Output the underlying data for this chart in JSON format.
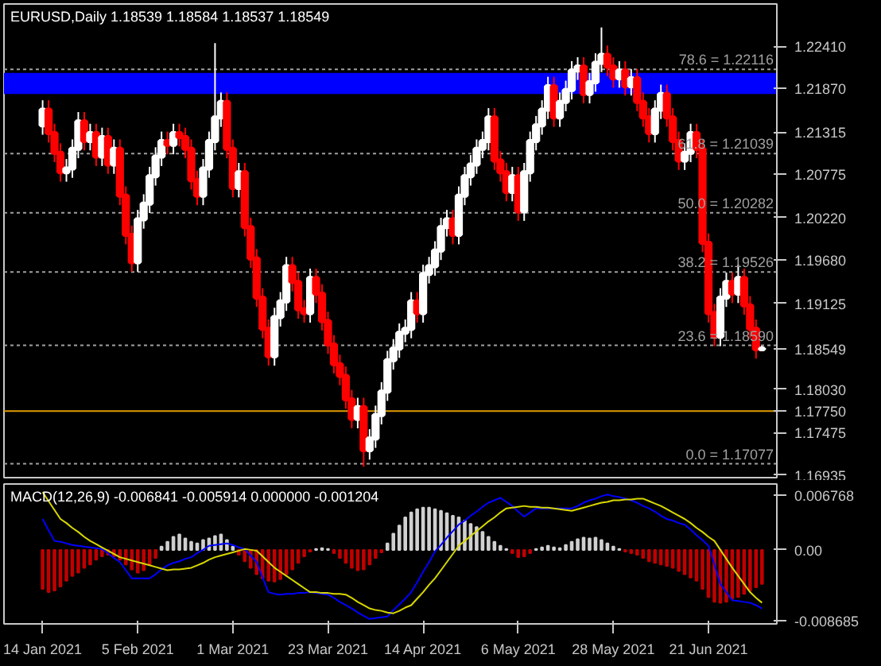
{
  "chart_data": [
    {
      "type": "candlestick",
      "title": "EURUSD,Daily  1.18539 1.18584 1.18537 1.18549",
      "tick_labels": "y",
      "categories": [
        null,
        null,
        null,
        null,
        null,
        null,
        null,
        null,
        null,
        null,
        null,
        null,
        null,
        null,
        null,
        null,
        null,
        null,
        null,
        null,
        null,
        null,
        null,
        null,
        null,
        null,
        null,
        null,
        null,
        null,
        null,
        null,
        null,
        null,
        null,
        null,
        null,
        null,
        null,
        null,
        null,
        null,
        null,
        null,
        null,
        null,
        null,
        null,
        null,
        null,
        null,
        null,
        null,
        null,
        null,
        null,
        null,
        null,
        null,
        null,
        null,
        null,
        null,
        null,
        null,
        null,
        null,
        null,
        null,
        null,
        null,
        null,
        null,
        null,
        null,
        null,
        null,
        null,
        null,
        null,
        null,
        null,
        null,
        null,
        null,
        null,
        null,
        null,
        null,
        null,
        null,
        null,
        null,
        null,
        null,
        null,
        null,
        null,
        null,
        null,
        null,
        null,
        null,
        null,
        null,
        null,
        null,
        null,
        null,
        null,
        null,
        null,
        null,
        null,
        null,
        null,
        null,
        null,
        null,
        null,
        null,
        null
      ],
      "ohlc": [
        [
          1.214,
          1.2172,
          1.2128,
          1.216
        ],
        [
          1.216,
          1.2172,
          1.2118,
          1.213
        ],
        [
          1.213,
          1.2142,
          1.2093,
          1.2105
        ],
        [
          1.2105,
          1.2117,
          1.2068,
          1.208
        ],
        [
          1.208,
          1.2097,
          1.2068,
          1.2085
        ],
        [
          1.2085,
          1.2122,
          1.2073,
          1.211
        ],
        [
          1.211,
          1.2157,
          1.2098,
          1.2145
        ],
        [
          1.2145,
          1.2157,
          1.2108,
          1.212
        ],
        [
          1.212,
          1.2142,
          1.2108,
          1.213
        ],
        [
          1.213,
          1.2142,
          1.2088,
          1.21
        ],
        [
          1.21,
          1.2137,
          1.2088,
          1.2125
        ],
        [
          1.2125,
          1.2137,
          1.2078,
          1.209
        ],
        [
          1.209,
          1.2122,
          1.2078,
          1.211
        ],
        [
          1.211,
          1.2122,
          1.2038,
          1.205
        ],
        [
          1.205,
          1.2062,
          1.1988,
          1.2
        ],
        [
          1.2,
          1.2012,
          1.1953,
          1.1965
        ],
        [
          1.1965,
          1.2032,
          1.1953,
          1.202
        ],
        [
          1.202,
          1.2052,
          1.2008,
          1.204
        ],
        [
          1.204,
          1.2087,
          1.2028,
          1.2075
        ],
        [
          1.2075,
          1.2112,
          1.2063,
          1.21
        ],
        [
          1.21,
          1.2132,
          1.2088,
          1.212
        ],
        [
          1.212,
          1.2132,
          1.2103,
          1.2115
        ],
        [
          1.2115,
          1.2142,
          1.2103,
          1.213
        ],
        [
          1.213,
          1.2142,
          1.2113,
          1.2125
        ],
        [
          1.2125,
          1.2137,
          1.2098,
          1.211
        ],
        [
          1.211,
          1.2122,
          1.2058,
          1.207
        ],
        [
          1.207,
          1.2082,
          1.2038,
          1.205
        ],
        [
          1.205,
          1.2097,
          1.2038,
          1.2085
        ],
        [
          1.2085,
          1.2132,
          1.2073,
          1.212
        ],
        [
          1.212,
          1.2245,
          1.2108,
          1.215
        ],
        [
          1.215,
          1.2182,
          1.2138,
          1.217
        ],
        [
          1.217,
          1.2182,
          1.2098,
          1.211
        ],
        [
          1.211,
          1.2122,
          1.2048,
          1.206
        ],
        [
          1.206,
          1.2092,
          1.2048,
          1.208
        ],
        [
          1.208,
          1.2092,
          1.1998,
          1.201
        ],
        [
          1.201,
          1.2022,
          1.1958,
          1.197
        ],
        [
          1.197,
          1.1982,
          1.1908,
          1.192
        ],
        [
          1.192,
          1.1932,
          1.1868,
          1.188
        ],
        [
          1.188,
          1.1892,
          1.1833,
          1.1845
        ],
        [
          1.1845,
          1.1907,
          1.1833,
          1.1895
        ],
        [
          1.1895,
          1.1927,
          1.1883,
          1.1915
        ],
        [
          1.1915,
          1.1972,
          1.1903,
          1.196
        ],
        [
          1.196,
          1.1972,
          1.1928,
          1.194
        ],
        [
          1.194,
          1.1952,
          1.1893,
          1.1905
        ],
        [
          1.1905,
          1.1917,
          1.1888,
          1.19
        ],
        [
          1.19,
          1.1957,
          1.1888,
          1.1945
        ],
        [
          1.1945,
          1.1957,
          1.1913,
          1.1925
        ],
        [
          1.1925,
          1.1937,
          1.1878,
          1.189
        ],
        [
          1.189,
          1.1902,
          1.1848,
          1.186
        ],
        [
          1.186,
          1.1872,
          1.1823,
          1.1835
        ],
        [
          1.1835,
          1.1847,
          1.1808,
          1.182
        ],
        [
          1.182,
          1.1832,
          1.1778,
          1.179
        ],
        [
          1.179,
          1.1802,
          1.1753,
          1.1765
        ],
        [
          1.1765,
          1.1792,
          1.1753,
          1.178
        ],
        [
          1.178,
          1.1792,
          1.1704,
          1.1725
        ],
        [
          1.1725,
          1.1752,
          1.1713,
          1.174
        ],
        [
          1.174,
          1.1782,
          1.1728,
          1.177
        ],
        [
          1.177,
          1.1812,
          1.1758,
          1.18
        ],
        [
          1.18,
          1.1852,
          1.1788,
          1.184
        ],
        [
          1.184,
          1.1867,
          1.1828,
          1.1855
        ],
        [
          1.1855,
          1.1887,
          1.1843,
          1.1875
        ],
        [
          1.1875,
          1.1892,
          1.1863,
          1.188
        ],
        [
          1.188,
          1.1927,
          1.1868,
          1.1915
        ],
        [
          1.1915,
          1.1927,
          1.1888,
          1.19
        ],
        [
          1.19,
          1.1962,
          1.1888,
          1.195
        ],
        [
          1.195,
          1.1972,
          1.1938,
          1.196
        ],
        [
          1.196,
          1.1992,
          1.1948,
          1.198
        ],
        [
          1.198,
          1.2022,
          1.1968,
          1.201
        ],
        [
          1.201,
          1.2032,
          1.1998,
          1.202
        ],
        [
          1.202,
          1.2032,
          1.1988,
          1.2
        ],
        [
          1.2,
          1.2062,
          1.1988,
          1.205
        ],
        [
          1.205,
          1.2087,
          1.2038,
          1.2075
        ],
        [
          1.2075,
          1.2102,
          1.2063,
          1.209
        ],
        [
          1.209,
          1.2122,
          1.2078,
          1.211
        ],
        [
          1.211,
          1.2132,
          1.2098,
          1.212
        ],
        [
          1.212,
          1.2162,
          1.2108,
          1.215
        ],
        [
          1.215,
          1.2162,
          1.2083,
          1.2095
        ],
        [
          1.2095,
          1.2107,
          1.2068,
          1.208
        ],
        [
          1.208,
          1.2092,
          1.2043,
          1.2055
        ],
        [
          1.2055,
          1.2087,
          1.2043,
          1.2075
        ],
        [
          1.2075,
          1.2087,
          1.2018,
          1.203
        ],
        [
          1.203,
          1.2092,
          1.2018,
          1.208
        ],
        [
          1.208,
          1.2132,
          1.2068,
          1.212
        ],
        [
          1.212,
          1.2152,
          1.2108,
          1.214
        ],
        [
          1.214,
          1.2172,
          1.2128,
          1.216
        ],
        [
          1.216,
          1.2202,
          1.2148,
          1.219
        ],
        [
          1.219,
          1.2202,
          1.2138,
          1.215
        ],
        [
          1.215,
          1.2182,
          1.2138,
          1.217
        ],
        [
          1.217,
          1.2197,
          1.2158,
          1.2185
        ],
        [
          1.2185,
          1.2222,
          1.2173,
          1.221
        ],
        [
          1.221,
          1.2227,
          1.2198,
          1.2215
        ],
        [
          1.2215,
          1.2227,
          1.2168,
          1.218
        ],
        [
          1.218,
          1.2207,
          1.2168,
          1.2195
        ],
        [
          1.2195,
          1.2232,
          1.2183,
          1.222
        ],
        [
          1.222,
          1.2265,
          1.2208,
          1.223
        ],
        [
          1.223,
          1.2242,
          1.2203,
          1.2215
        ],
        [
          1.2215,
          1.2227,
          1.2188,
          1.22
        ],
        [
          1.22,
          1.2222,
          1.2188,
          1.221
        ],
        [
          1.221,
          1.2222,
          1.2178,
          1.219
        ],
        [
          1.219,
          1.2212,
          1.2178,
          1.22
        ],
        [
          1.22,
          1.2212,
          1.2158,
          1.217
        ],
        [
          1.217,
          1.2182,
          1.2138,
          1.215
        ],
        [
          1.215,
          1.2162,
          1.2118,
          1.213
        ],
        [
          1.213,
          1.2172,
          1.2118,
          1.216
        ],
        [
          1.216,
          1.2192,
          1.2148,
          1.218
        ],
        [
          1.218,
          1.2192,
          1.2138,
          1.215
        ],
        [
          1.215,
          1.2162,
          1.2108,
          1.212
        ],
        [
          1.212,
          1.2132,
          1.2083,
          1.2095
        ],
        [
          1.2095,
          1.2117,
          1.2083,
          1.2105
        ],
        [
          1.2105,
          1.2142,
          1.2093,
          1.213
        ],
        [
          1.213,
          1.2142,
          1.2098,
          1.211
        ],
        [
          1.211,
          1.2122,
          1.1978,
          1.199
        ],
        [
          1.199,
          1.2002,
          1.1888,
          1.19
        ],
        [
          1.19,
          1.1912,
          1.1858,
          1.187
        ],
        [
          1.187,
          1.1932,
          1.1858,
          1.192
        ],
        [
          1.192,
          1.1952,
          1.1908,
          1.194
        ],
        [
          1.194,
          1.1952,
          1.1913,
          1.1925
        ],
        [
          1.1925,
          1.1962,
          1.1913,
          1.1945
        ],
        [
          1.1945,
          1.1957,
          1.1898,
          1.191
        ],
        [
          1.191,
          1.1922,
          1.1868,
          1.188
        ],
        [
          1.188,
          1.1892,
          1.1842,
          1.1854
        ],
        [
          1.18539,
          1.18584,
          1.18537,
          1.18549
        ]
      ],
      "ylim": [
        1.169,
        1.2295
      ],
      "yticks": [
        {
          "value": 1.2241,
          "label": "1.22410"
        },
        {
          "value": 1.2187,
          "label": "1.21870"
        },
        1.21315,
        1.20775,
        {
          "value": 1.2022,
          "label": "1.20220"
        },
        {
          "value": 1.1968,
          "label": "1.19680"
        },
        1.19125,
        {
          "value": 1.18549,
          "label": "1.18549"
        },
        {
          "value": 1.1803,
          "label": "1.18030"
        },
        1.17475,
        1.16935
      ],
      "ref_lines": [
        {
          "axis": "y",
          "value": 1.22116,
          "label": "78.6 = 1.22116",
          "color": "#a0a0a0",
          "line_style": "dotted"
        },
        {
          "axis": "y",
          "value": 1.21039,
          "label": "61.8 = 1.21039",
          "color": "#a0a0a0",
          "line_style": "dotted"
        },
        {
          "axis": "y",
          "value": 1.20282,
          "label": "50.0 = 1.20282",
          "color": "#a0a0a0",
          "line_style": "dotted"
        },
        {
          "axis": "y",
          "value": 1.19526,
          "label": "38.2 = 1.19526",
          "color": "#a0a0a0",
          "line_style": "dotted"
        },
        {
          "axis": "y",
          "value": 1.1859,
          "label": "23.6 = 1.18590",
          "color": "#a0a0a0",
          "line_style": "dotted"
        },
        {
          "axis": "y",
          "value": 1.17077,
          "label": "0.0 = 1.17077",
          "color": "#a0a0a0",
          "line_style": "dotted"
        },
        {
          "axis": "y",
          "value": 1.1775,
          "label": "1.17750",
          "color": "#e09a00",
          "line_style": "solid"
        }
      ],
      "bands": [
        {
          "axis": "y",
          "from": 1.218,
          "to": 1.2207,
          "color": "#0000ff"
        }
      ]
    },
    {
      "type": "bar",
      "title": "MACD(12,26,9) -0.006841 -0.005914 0.000000 -0.001204",
      "categories": [
        "14 Jan 2021",
        null,
        null,
        null,
        null,
        null,
        null,
        null,
        null,
        null,
        null,
        null,
        null,
        null,
        null,
        null,
        "5 Feb 2021",
        null,
        null,
        null,
        null,
        null,
        null,
        null,
        null,
        null,
        null,
        null,
        null,
        null,
        null,
        null,
        "1 Mar 2021",
        null,
        null,
        null,
        null,
        null,
        null,
        null,
        null,
        null,
        null,
        null,
        null,
        null,
        null,
        null,
        "23 Mar 2021",
        null,
        null,
        null,
        null,
        null,
        null,
        null,
        null,
        null,
        null,
        null,
        null,
        null,
        null,
        null,
        "14 Apr 2021",
        null,
        null,
        null,
        null,
        null,
        null,
        null,
        null,
        null,
        null,
        null,
        null,
        null,
        null,
        null,
        "6 May 2021",
        null,
        null,
        null,
        null,
        null,
        null,
        null,
        null,
        null,
        null,
        null,
        null,
        null,
        null,
        null,
        "28 May 2021",
        null,
        null,
        null,
        null,
        null,
        null,
        null,
        null,
        null,
        null,
        null,
        null,
        null,
        null,
        null,
        "21 Jun 2021",
        null,
        null,
        null,
        null,
        null,
        null,
        null,
        null,
        null
      ],
      "ylim": [
        -0.0091,
        0.0081
      ],
      "yticks": [
        {
          "value": 0.006768,
          "label": "0.006768"
        },
        {
          "value": 0,
          "label": "0.00"
        },
        {
          "value": -0.008685,
          "label": "-0.008685"
        }
      ],
      "series": [
        {
          "type": "bar",
          "values": [
            -0.0048,
            -0.0052,
            -0.005,
            -0.0045,
            -0.0038,
            -0.0032,
            -0.0028,
            -0.0022,
            -0.0018,
            -0.0012,
            -0.0008,
            -0.0006,
            -0.0008,
            -0.0012,
            -0.0018,
            -0.0024,
            -0.0028,
            -0.0025,
            -0.0018,
            -0.001,
            0.0004,
            0.001,
            0.0016,
            0.0019,
            0.0014,
            0.001,
            0.0008,
            0.0012,
            0.0014,
            0.0017,
            0.0019,
            0.0012,
            0.0004,
            -0.0006,
            -0.0014,
            -0.0022,
            -0.003,
            -0.0035,
            -0.0038,
            -0.0039,
            -0.0036,
            -0.003,
            -0.0024,
            -0.0016,
            -0.0008,
            -0.0002,
            0.0001,
            0.0002,
            0.0001,
            -0.0004,
            -0.001,
            -0.0016,
            -0.0022,
            -0.0025,
            -0.0024,
            -0.0018,
            -0.001,
            -0.0003,
            0.0008,
            0.002,
            0.003,
            0.004,
            0.0046,
            0.005,
            0.0052,
            0.0052,
            0.005,
            0.0048,
            0.0045,
            0.0042,
            0.004,
            0.0036,
            0.0032,
            0.0028,
            0.0022,
            0.0016,
            0.001,
            0.0005,
            0.0001,
            -0.0004,
            -0.0009,
            -0.0008,
            -0.0004,
            0.0001,
            0.0003,
            0.0005,
            0.0003,
            0.0002,
            0.0006,
            0.001,
            0.0013,
            0.0015,
            0.0014,
            0.0015,
            0.0012,
            0.0008,
            0.0004,
            0.0001,
            -0.0002,
            -0.0004,
            -0.0006,
            -0.001,
            -0.0014,
            -0.0016,
            -0.0018,
            -0.002,
            -0.0022,
            -0.0026,
            -0.003,
            -0.0034,
            -0.0038,
            -0.0048,
            -0.0058,
            -0.0064,
            -0.0065,
            -0.0064,
            -0.006,
            -0.0058,
            -0.0054,
            -0.005,
            -0.0046,
            -0.0042
          ],
          "colors": [
            "#c00000",
            "#c00000",
            "#c00000",
            "#c00000",
            "#c00000",
            "#c00000",
            "#c00000",
            "#c00000",
            "#c00000",
            "#c00000",
            "#c00000",
            "#c00000",
            "#c00000",
            "#c00000",
            "#c00000",
            "#c00000",
            "#c00000",
            "#c00000",
            "#c00000",
            "#c00000",
            "#d0d0d0",
            "#d0d0d0",
            "#d0d0d0",
            "#d0d0d0",
            "#d0d0d0",
            "#d0d0d0",
            "#d0d0d0",
            "#d0d0d0",
            "#d0d0d0",
            "#d0d0d0",
            "#d0d0d0",
            "#d0d0d0",
            "#d0d0d0",
            "#c00000",
            "#c00000",
            "#c00000",
            "#c00000",
            "#c00000",
            "#c00000",
            "#c00000",
            "#c00000",
            "#c00000",
            "#c00000",
            "#c00000",
            "#c00000",
            "#c00000",
            "#d0d0d0",
            "#d0d0d0",
            "#d0d0d0",
            "#c00000",
            "#c00000",
            "#c00000",
            "#c00000",
            "#c00000",
            "#c00000",
            "#c00000",
            "#c00000",
            "#c00000",
            "#d0d0d0",
            "#d0d0d0",
            "#d0d0d0",
            "#d0d0d0",
            "#d0d0d0",
            "#d0d0d0",
            "#d0d0d0",
            "#d0d0d0",
            "#d0d0d0",
            "#d0d0d0",
            "#d0d0d0",
            "#d0d0d0",
            "#d0d0d0",
            "#d0d0d0",
            "#d0d0d0",
            "#d0d0d0",
            "#d0d0d0",
            "#d0d0d0",
            "#d0d0d0",
            "#d0d0d0",
            "#d0d0d0",
            "#c00000",
            "#c00000",
            "#c00000",
            "#c00000",
            "#d0d0d0",
            "#d0d0d0",
            "#d0d0d0",
            "#d0d0d0",
            "#d0d0d0",
            "#d0d0d0",
            "#d0d0d0",
            "#d0d0d0",
            "#d0d0d0",
            "#d0d0d0",
            "#d0d0d0",
            "#d0d0d0",
            "#d0d0d0",
            "#d0d0d0",
            "#d0d0d0",
            "#c00000",
            "#c00000",
            "#c00000",
            "#c00000",
            "#c00000",
            "#c00000",
            "#c00000",
            "#c00000",
            "#c00000",
            "#c00000",
            "#c00000",
            "#c00000",
            "#c00000",
            "#c00000",
            "#c00000",
            "#c00000",
            "#c00000",
            "#c00000",
            "#c00000",
            "#c00000",
            "#c00000",
            "#c00000",
            "#c00000",
            "#c00000"
          ]
        },
        {
          "type": "line",
          "color": "#0000ff",
          "values": [
            0.0038,
            0.0024,
            0.0011,
            0.001,
            0.0008,
            0.0006,
            0.0005,
            0.0004,
            0.0003,
            0.0002,
            0.0001,
            -0.0004,
            -0.001,
            -0.0015,
            -0.0025,
            -0.0035,
            -0.0035,
            -0.0035,
            -0.0035,
            -0.003,
            -0.0024,
            -0.0019,
            -0.0016,
            -0.0014,
            -0.0011,
            -0.0009,
            -0.0004,
            0.0,
            0.0005,
            0.0006,
            0.0007,
            0.0008,
            0.0006,
            0.0003,
            0.0001,
            -0.0007,
            -0.0015,
            -0.0034,
            -0.0052,
            -0.0054,
            -0.0055,
            -0.0054,
            -0.0054,
            -0.0053,
            -0.0053,
            -0.0052,
            -0.0053,
            -0.0054,
            -0.0055,
            -0.0059,
            -0.0064,
            -0.0068,
            -0.0072,
            -0.0077,
            -0.0081,
            -0.0085,
            -0.0084,
            -0.0083,
            -0.0082,
            -0.0074,
            -0.0067,
            -0.006,
            -0.0052,
            -0.004,
            -0.0027,
            -0.0015,
            -0.0002,
            0.0006,
            0.0015,
            0.0023,
            0.0031,
            0.0036,
            0.0042,
            0.0047,
            0.0053,
            0.0058,
            0.0061,
            0.0064,
            0.0059,
            0.0054,
            0.0047,
            0.0041,
            0.0046,
            0.0051,
            0.0051,
            0.0051,
            0.0051,
            0.0051,
            0.0051,
            0.0051,
            0.0054,
            0.0058,
            0.0061,
            0.0063,
            0.0066,
            0.0068,
            0.0066,
            0.0065,
            0.0063,
            0.0061,
            0.0058,
            0.0054,
            0.0051,
            0.0047,
            0.0042,
            0.0038,
            0.0036,
            0.0033,
            0.0031,
            0.0025,
            0.0018,
            0.0012,
            0.0005,
            -0.0018,
            -0.0042,
            -0.0052,
            -0.0062,
            -0.0063,
            -0.0064,
            -0.0065,
            -0.0068,
            -0.0072
          ]
        },
        {
          "type": "line",
          "color": "#d8d800",
          "values": [
            0.0071,
            0.006,
            0.0049,
            0.0038,
            0.0033,
            0.0027,
            0.0022,
            0.0016,
            0.0011,
            0.0007,
            0.0003,
            -0.0001,
            -0.0005,
            -0.0009,
            -0.0011,
            -0.0013,
            -0.0015,
            -0.0017,
            -0.0019,
            -0.0021,
            -0.0023,
            -0.0025,
            -0.0024,
            -0.0024,
            -0.0023,
            -0.0022,
            -0.0019,
            -0.0016,
            -0.0012,
            -0.0009,
            -0.0007,
            -0.0005,
            -0.0003,
            -0.0001,
            0.0001,
            0.0,
            -0.0001,
            -0.0008,
            -0.0015,
            -0.0022,
            -0.0027,
            -0.0032,
            -0.0037,
            -0.0042,
            -0.0047,
            -0.0052,
            -0.0052,
            -0.0053,
            -0.0053,
            -0.0054,
            -0.0054,
            -0.0055,
            -0.0059,
            -0.0064,
            -0.0068,
            -0.0072,
            -0.0074,
            -0.0075,
            -0.0077,
            -0.0078,
            -0.0075,
            -0.0071,
            -0.0068,
            -0.006,
            -0.0052,
            -0.0043,
            -0.0035,
            -0.0025,
            -0.0015,
            -0.0005,
            0.0005,
            0.0011,
            0.0017,
            0.0023,
            0.0029,
            0.0035,
            0.004,
            0.0046,
            0.0051,
            0.0052,
            0.0053,
            0.0054,
            0.0053,
            0.0053,
            0.0052,
            0.0052,
            0.0051,
            0.005,
            0.0049,
            0.0048,
            0.005,
            0.0052,
            0.0054,
            0.0056,
            0.0058,
            0.0059,
            0.0061,
            0.0061,
            0.0062,
            0.0062,
            0.0063,
            0.0063,
            0.006,
            0.0057,
            0.0054,
            0.005,
            0.0046,
            0.0042,
            0.0038,
            0.0033,
            0.0027,
            0.0022,
            0.0016,
            0.0011,
            0.0,
            -0.0011,
            -0.0022,
            -0.0032,
            -0.0042,
            -0.0052,
            -0.0059,
            -0.0065
          ]
        }
      ]
    }
  ]
}
